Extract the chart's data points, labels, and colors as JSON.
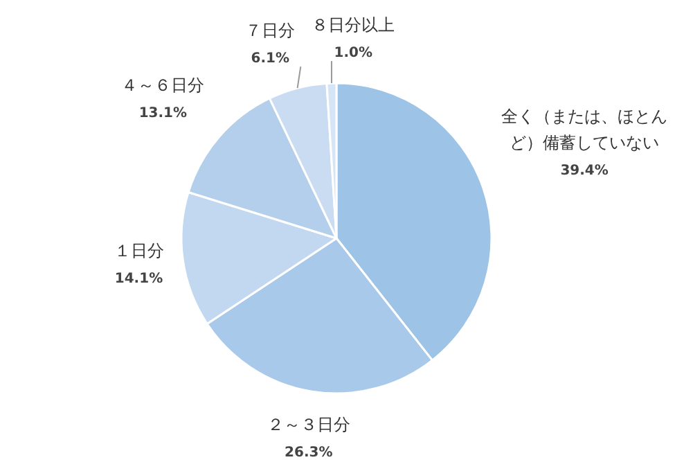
{
  "chart_data": {
    "type": "pie",
    "categories": [
      "全く（または、ほとんど）備蓄していない",
      "２～３日分",
      "１日分",
      "４～６日分",
      "７日分",
      "８日分以上"
    ],
    "values": [
      39.4,
      26.3,
      14.1,
      13.1,
      6.1,
      1.0
    ],
    "value_labels": [
      "39.4%",
      "26.3%",
      "14.1%",
      "13.1%",
      "6.1%",
      "1.0%"
    ],
    "colors": [
      "#9dc3e6",
      "#a8c9ea",
      "#c2d8f0",
      "#b4cfec",
      "#c9dcf2",
      "#d6e5f5"
    ]
  }
}
